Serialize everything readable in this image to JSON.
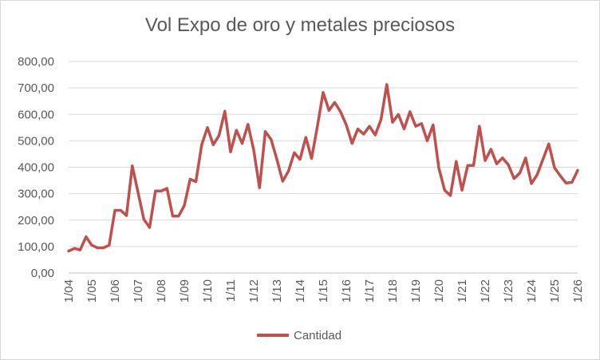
{
  "chart_data": {
    "type": "line",
    "title": "Vol Expo de oro y metales preciosos",
    "xlabel": "",
    "ylabel": "",
    "ylim": [
      0,
      800
    ],
    "yticks": [
      "0,00",
      "100,00",
      "200,00",
      "300,00",
      "400,00",
      "500,00",
      "600,00",
      "700,00",
      "800,00"
    ],
    "xticks": [
      "1/04",
      "1/05",
      "1/06",
      "1/07",
      "1/08",
      "1/09",
      "1/10",
      "1/11",
      "1/12",
      "1/13",
      "1/14",
      "1/15",
      "1/16",
      "1/17",
      "1/18",
      "1/19",
      "1/20",
      "1/21",
      "1/22",
      "1/23",
      "1/24",
      "1/25",
      "1/26"
    ],
    "legend": "bottom",
    "grid": true,
    "series": [
      {
        "name": "Cantidad",
        "color": "#c0504d",
        "values": [
          83,
          93,
          87,
          137,
          105,
          95,
          95,
          105,
          237,
          237,
          217,
          405,
          305,
          203,
          172,
          310,
          310,
          320,
          215,
          215,
          255,
          355,
          345,
          485,
          550,
          485,
          520,
          612,
          458,
          540,
          490,
          562,
          465,
          322,
          535,
          505,
          430,
          347,
          385,
          455,
          430,
          513,
          433,
          555,
          683,
          615,
          645,
          610,
          560,
          490,
          545,
          525,
          555,
          522,
          580,
          713,
          570,
          600,
          545,
          610,
          555,
          565,
          500,
          560,
          397,
          313,
          293,
          422,
          313,
          407,
          407,
          555,
          425,
          468,
          413,
          435,
          410,
          357,
          378,
          435,
          338,
          372,
          430,
          488,
          398,
          367,
          340,
          343,
          388
        ]
      }
    ]
  }
}
